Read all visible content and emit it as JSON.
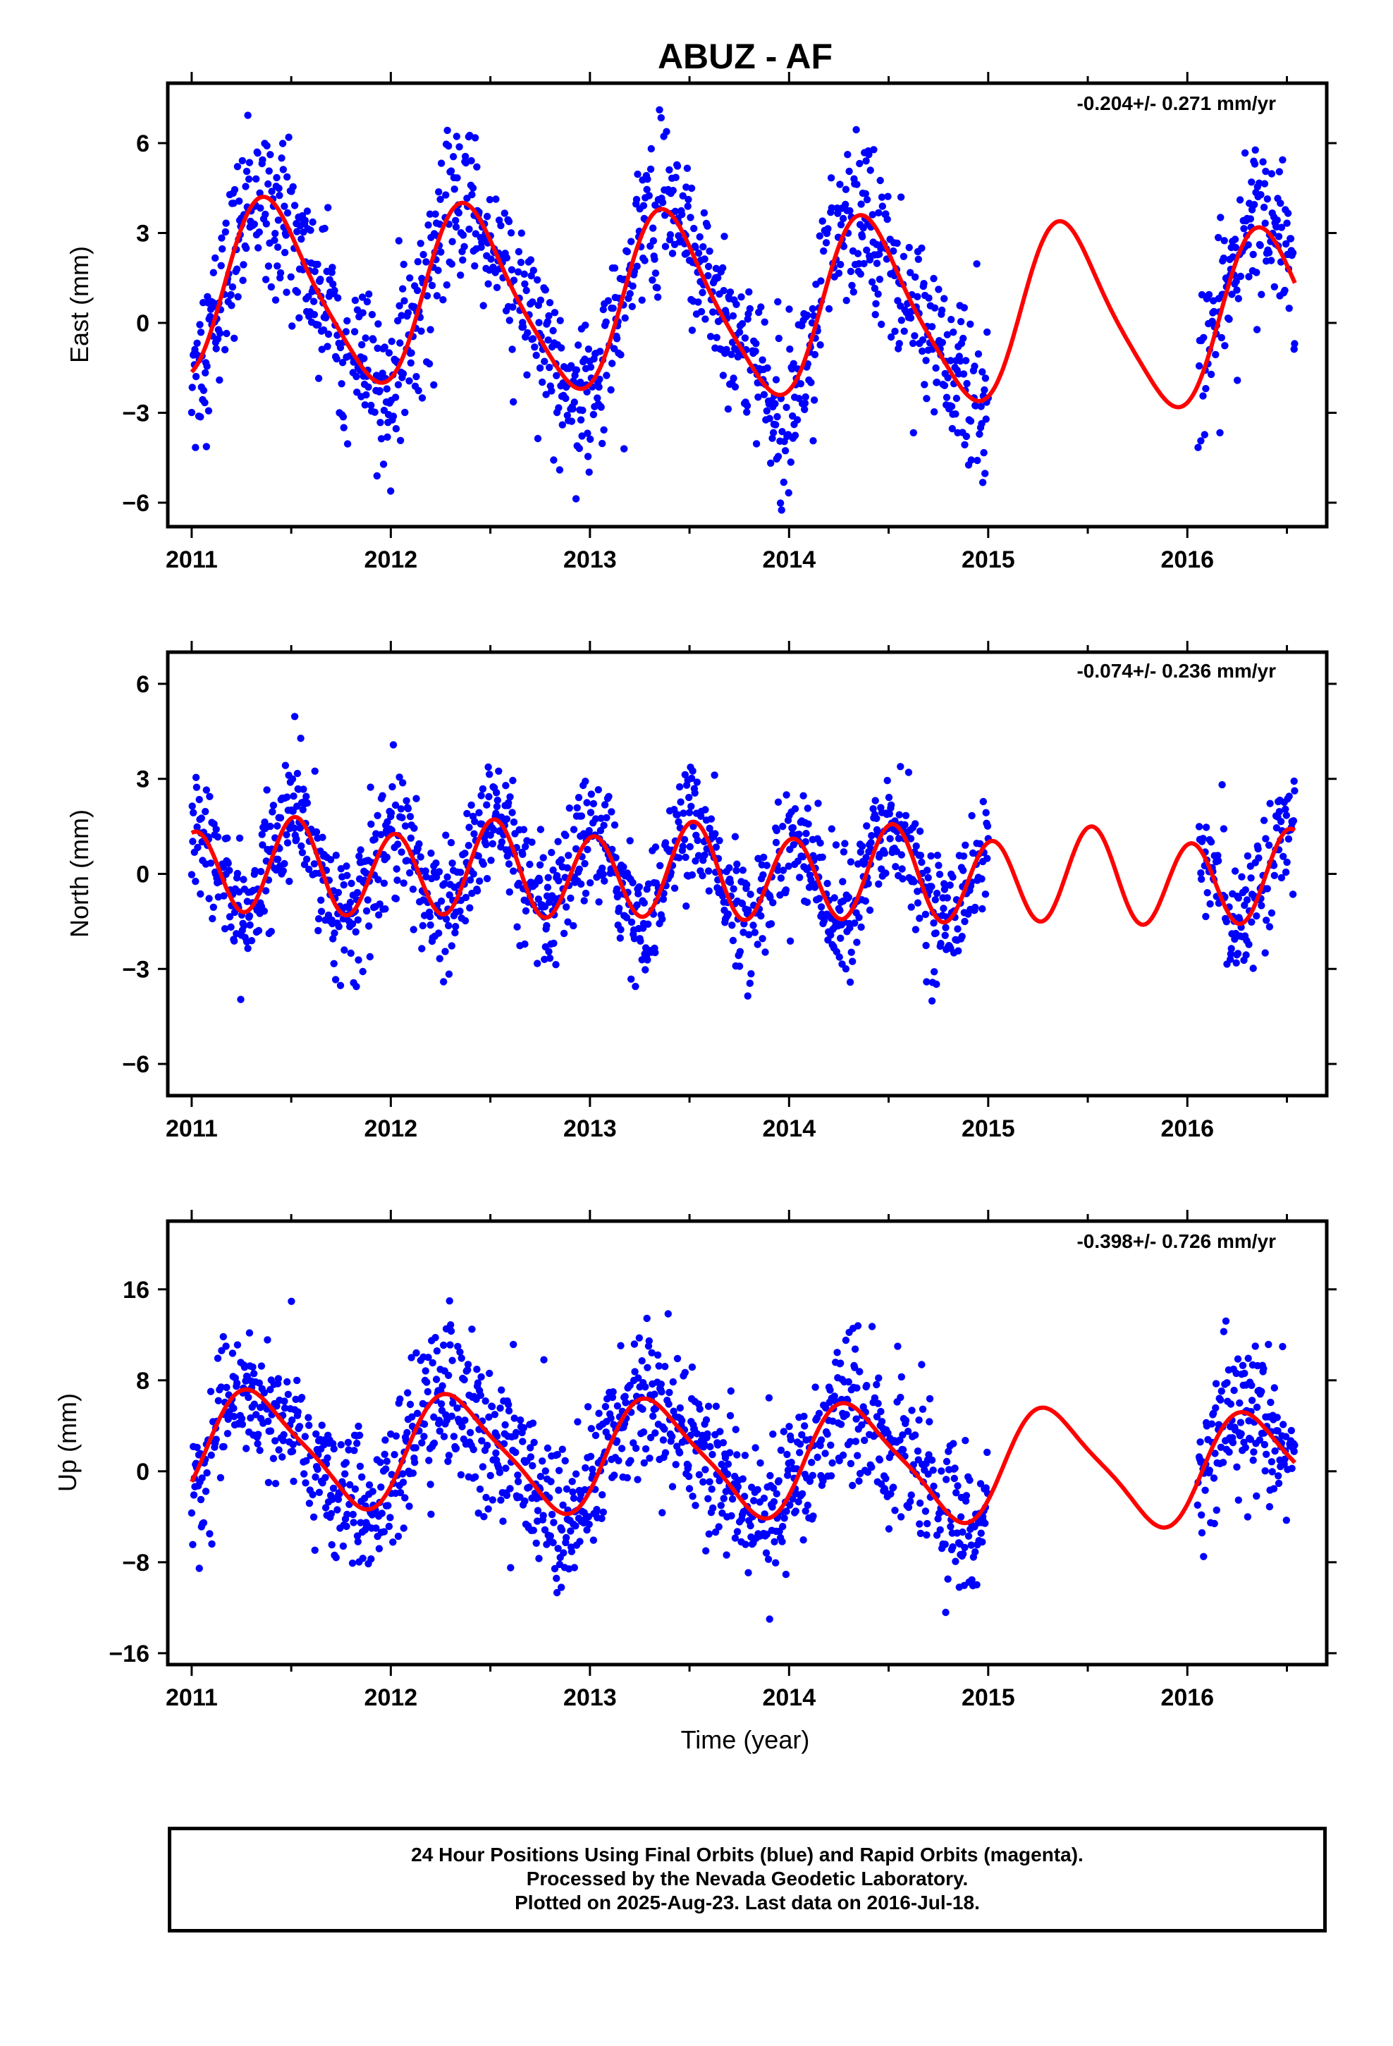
{
  "chart_data": {
    "type": "scatter",
    "title": "ABUZ - AF",
    "xlabel": "Time (year)",
    "xlim": [
      2010.88,
      2016.7
    ],
    "x_ticks": [
      "2011",
      "2012",
      "2013",
      "2014",
      "2015",
      "2016"
    ],
    "grid": false,
    "point_color": "#0000ff",
    "model_color": "#ff0000",
    "data_end": 2016.54,
    "data_gap": [
      2015.0,
      2016.05
    ],
    "panels": [
      {
        "name": "east",
        "ylabel": "East (mm)",
        "rate_text": "-0.204+/- 0.271 mm/yr",
        "ylim": [
          -6.8,
          8.0
        ],
        "y_ticks": [
          6,
          3,
          0,
          -3,
          -6
        ],
        "model": {
          "offset": 0.6,
          "trend": -0.204,
          "annual_amp": 2.9,
          "annual_peak": 2011.4,
          "semiannual_amp": 0.5,
          "semiannual_peak": 2011.3
        },
        "noise": 1.3
      },
      {
        "name": "north",
        "ylabel": "North (mm)",
        "rate_text": "-0.074+/- 0.236 mm/yr",
        "ylim": [
          -7.0,
          7.0
        ],
        "y_ticks": [
          6,
          3,
          0,
          -3,
          -6
        ],
        "model": {
          "offset": 0.0,
          "trend": -0.074,
          "annual_amp": 0.25,
          "annual_peak": 2011.5,
          "semiannual_amp": 1.4,
          "semiannual_peak": 2011.02
        },
        "noise": 0.95
      },
      {
        "name": "up",
        "ylabel": "Up (mm)",
        "rate_text": "-0.398+/- 0.726 mm/yr",
        "ylim": [
          -17,
          22
        ],
        "y_ticks": [
          16,
          8,
          0,
          -8,
          -16
        ],
        "model": {
          "offset": 1.2,
          "trend": -0.398,
          "annual_amp": 4.8,
          "annual_peak": 2011.33,
          "semiannual_amp": 1.0,
          "semiannual_peak": 2011.2
        },
        "noise": 3.2
      }
    ]
  },
  "footer": {
    "line1": "24 Hour Positions Using Final Orbits (blue) and Rapid Orbits (magenta).",
    "line2": "Processed by the Nevada Geodetic Laboratory.",
    "line3": "Plotted on 2025-Aug-23. Last data on 2016-Jul-18."
  }
}
